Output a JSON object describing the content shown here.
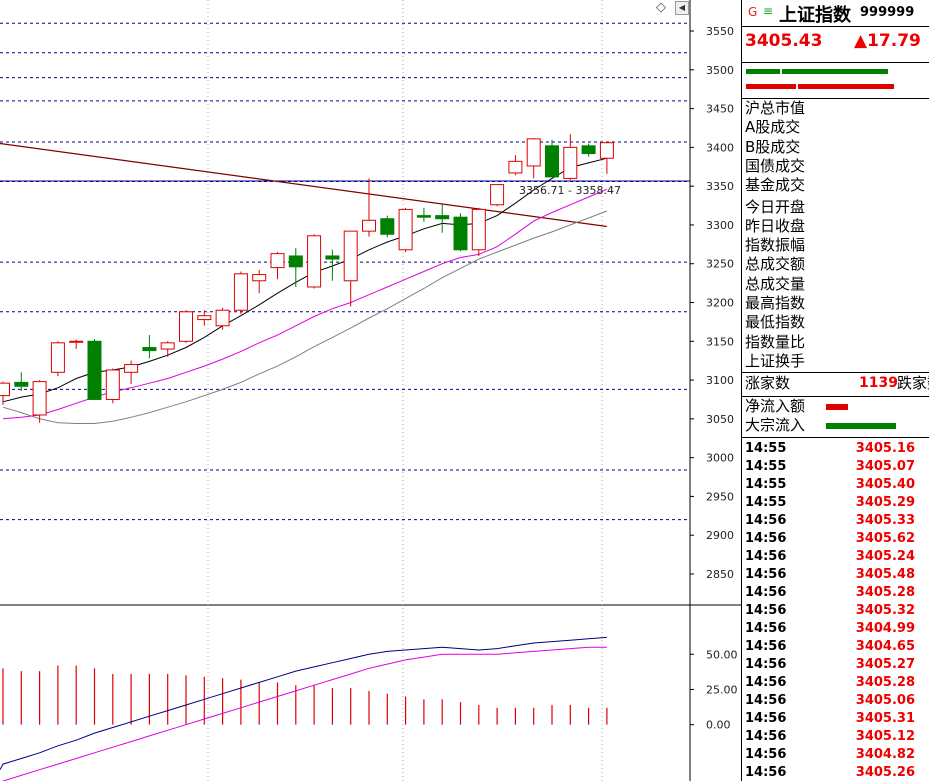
{
  "header": {
    "g_label": "G",
    "e_label": "≡",
    "index_name": "上证指数",
    "index_code": "999999",
    "price": "3405.43",
    "change": "▲17.79"
  },
  "info_labels": [
    "沪总市值",
    "A股成交",
    "B股成交",
    "国债成交",
    "基金成交",
    "今日开盘",
    "昨日收盘",
    "指数振幅",
    "总成交额",
    "总成交量",
    "最高指数",
    "最低指数",
    "指数量比",
    "上证换手"
  ],
  "breadth": {
    "up_label": "涨家数",
    "up_count": "1139",
    "down_label": "跌家数"
  },
  "flows": {
    "net_inflow_label": "净流入额",
    "block_inflow_label": "大宗流入"
  },
  "ticks": [
    {
      "time": "14:55",
      "value": "3405.16"
    },
    {
      "time": "14:55",
      "value": "3405.07"
    },
    {
      "time": "14:55",
      "value": "3405.40"
    },
    {
      "time": "14:55",
      "value": "3405.29"
    },
    {
      "time": "14:56",
      "value": "3405.33"
    },
    {
      "time": "14:56",
      "value": "3405.62"
    },
    {
      "time": "14:56",
      "value": "3405.24"
    },
    {
      "time": "14:56",
      "value": "3405.48"
    },
    {
      "time": "14:56",
      "value": "3405.28"
    },
    {
      "time": "14:56",
      "value": "3405.32"
    },
    {
      "time": "14:56",
      "value": "3404.99"
    },
    {
      "time": "14:56",
      "value": "3404.65"
    },
    {
      "time": "14:56",
      "value": "3405.27"
    },
    {
      "time": "14:56",
      "value": "3405.28"
    },
    {
      "time": "14:56",
      "value": "3405.06"
    },
    {
      "time": "14:56",
      "value": "3405.31"
    },
    {
      "time": "14:56",
      "value": "3405.12"
    },
    {
      "time": "14:56",
      "value": "3404.82"
    },
    {
      "time": "14:56",
      "value": "3405.26"
    }
  ],
  "colors": {
    "up": "#e00000",
    "down": "#008000",
    "ma1": "#000000",
    "ma2": "#e000e0",
    "ma3": "#808080",
    "trend": "#800000",
    "grid": "#00008b"
  },
  "chart_data": {
    "type": "candlestick",
    "price_axis": {
      "ylim": [
        2810,
        3590
      ],
      "ticks": [
        2850,
        2900,
        2950,
        3000,
        3050,
        3100,
        3150,
        3200,
        3250,
        3300,
        3350,
        3400,
        3450,
        3500,
        3550
      ],
      "dashed_levels": [
        3088,
        3188,
        3252,
        3356,
        3407,
        3460,
        3490,
        3522,
        3560,
        2984,
        2920
      ]
    },
    "current_price_line": 3356.71,
    "annotation": "3356.71 - 3358.47",
    "candles": [
      {
        "o": 3080,
        "h": 3098,
        "l": 3068,
        "c": 3096
      },
      {
        "o": 3097,
        "h": 3110,
        "l": 3086,
        "c": 3092
      },
      {
        "o": 3055,
        "h": 3100,
        "l": 3045,
        "c": 3098
      },
      {
        "o": 3110,
        "h": 3150,
        "l": 3105,
        "c": 3148
      },
      {
        "o": 3150,
        "h": 3152,
        "l": 3140,
        "c": 3150
      },
      {
        "o": 3150,
        "h": 3153,
        "l": 3075,
        "c": 3075
      },
      {
        "o": 3075,
        "h": 3115,
        "l": 3070,
        "c": 3113
      },
      {
        "o": 3110,
        "h": 3125,
        "l": 3095,
        "c": 3120
      },
      {
        "o": 3142,
        "h": 3158,
        "l": 3128,
        "c": 3138
      },
      {
        "o": 3140,
        "h": 3150,
        "l": 3130,
        "c": 3148
      },
      {
        "o": 3150,
        "h": 3190,
        "l": 3148,
        "c": 3188
      },
      {
        "o": 3178,
        "h": 3190,
        "l": 3170,
        "c": 3183
      },
      {
        "o": 3170,
        "h": 3193,
        "l": 3165,
        "c": 3190
      },
      {
        "o": 3190,
        "h": 3240,
        "l": 3185,
        "c": 3237
      },
      {
        "o": 3228,
        "h": 3242,
        "l": 3212,
        "c": 3236
      },
      {
        "o": 3245,
        "h": 3265,
        "l": 3230,
        "c": 3263
      },
      {
        "o": 3260,
        "h": 3270,
        "l": 3220,
        "c": 3246
      },
      {
        "o": 3220,
        "h": 3288,
        "l": 3218,
        "c": 3286
      },
      {
        "o": 3260,
        "h": 3268,
        "l": 3228,
        "c": 3256
      },
      {
        "o": 3228,
        "h": 3292,
        "l": 3195,
        "c": 3292
      },
      {
        "o": 3292,
        "h": 3360,
        "l": 3285,
        "c": 3306
      },
      {
        "o": 3308,
        "h": 3312,
        "l": 3284,
        "c": 3288
      },
      {
        "o": 3268,
        "h": 3322,
        "l": 3265,
        "c": 3320
      },
      {
        "o": 3312,
        "h": 3322,
        "l": 3304,
        "c": 3310
      },
      {
        "o": 3312,
        "h": 3328,
        "l": 3290,
        "c": 3308
      },
      {
        "o": 3310,
        "h": 3315,
        "l": 3266,
        "c": 3268
      },
      {
        "o": 3268,
        "h": 3322,
        "l": 3260,
        "c": 3320
      },
      {
        "o": 3326,
        "h": 3352,
        "l": 3324,
        "c": 3352
      },
      {
        "o": 3367,
        "h": 3390,
        "l": 3364,
        "c": 3382
      },
      {
        "o": 3376,
        "h": 3412,
        "l": 3360,
        "c": 3411
      },
      {
        "o": 3402,
        "h": 3410,
        "l": 3362,
        "c": 3362
      },
      {
        "o": 3360,
        "h": 3417,
        "l": 3358,
        "c": 3400
      },
      {
        "o": 3402,
        "h": 3405,
        "l": 3388,
        "c": 3392
      },
      {
        "o": 3386,
        "h": 3406,
        "l": 3366,
        "c": 3406
      }
    ],
    "ma_short": [
      3072,
      3078,
      3082,
      3090,
      3102,
      3110,
      3113,
      3117,
      3124,
      3132,
      3142,
      3155,
      3170,
      3183,
      3197,
      3212,
      3226,
      3239,
      3247,
      3256,
      3268,
      3278,
      3286,
      3295,
      3302,
      3300,
      3302,
      3312,
      3328,
      3345,
      3360,
      3374,
      3380,
      3386
    ],
    "ma_mid": [
      3050,
      3052,
      3055,
      3062,
      3070,
      3078,
      3085,
      3090,
      3096,
      3102,
      3110,
      3118,
      3127,
      3137,
      3148,
      3158,
      3170,
      3182,
      3192,
      3200,
      3210,
      3220,
      3230,
      3240,
      3250,
      3258,
      3262,
      3272,
      3288,
      3305,
      3316,
      3326,
      3336,
      3346
    ],
    "ma_long": [
      3065,
      3058,
      3050,
      3045,
      3044,
      3044,
      3047,
      3052,
      3058,
      3065,
      3072,
      3080,
      3088,
      3097,
      3108,
      3118,
      3130,
      3143,
      3155,
      3167,
      3180,
      3192,
      3205,
      3218,
      3232,
      3244,
      3256,
      3265,
      3274,
      3283,
      3291,
      3300,
      3309,
      3318
    ],
    "trend_line": {
      "start": 3405,
      "end": 3298
    },
    "indicator": {
      "ylim": [
        -40,
        80
      ],
      "ticks": [
        0,
        25,
        50
      ],
      "tick_labels": [
        "0.00",
        "25.00",
        "50.00"
      ],
      "volume_bars": [
        40,
        38,
        38,
        42,
        42,
        40,
        36,
        36,
        36,
        36,
        35,
        34,
        33,
        32,
        30,
        30,
        28,
        28,
        26,
        26,
        24,
        22,
        20,
        18,
        18,
        16,
        14,
        12,
        12,
        12,
        14,
        14,
        12,
        12
      ],
      "line1": [
        -28,
        -24,
        -20,
        -15,
        -11,
        -6,
        -2,
        2,
        6,
        10,
        14,
        18,
        22,
        26,
        30,
        34,
        38,
        41,
        44,
        47,
        50,
        52,
        53,
        54,
        55,
        54,
        53,
        54,
        56,
        58,
        59,
        60,
        61,
        62
      ],
      "line2": [
        -40,
        -36,
        -32,
        -28,
        -24,
        -20,
        -16,
        -12,
        -8,
        -4,
        0,
        4,
        8,
        12,
        16,
        20,
        24,
        28,
        32,
        36,
        40,
        43,
        46,
        48,
        50,
        50,
        50,
        50,
        51,
        52,
        53,
        54,
        55,
        55
      ]
    }
  }
}
